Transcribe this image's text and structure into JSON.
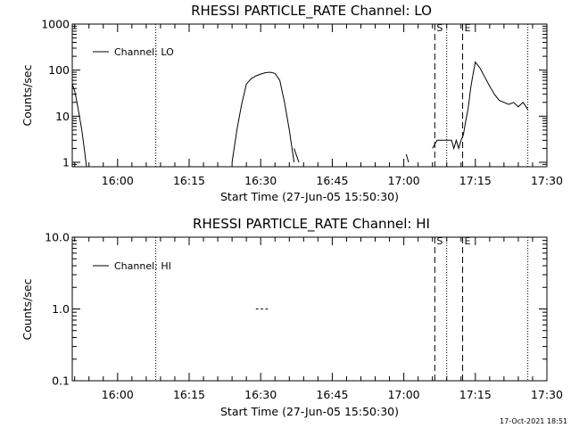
{
  "chart_data": [
    {
      "type": "line",
      "title": "RHESSI PARTICLE_RATE Channel: LO",
      "ylabel": "Counts/sec",
      "xlabel": "Start Time (27-Jun-05 15:50:30)",
      "x_ticks": [
        "16:00",
        "16:15",
        "16:30",
        "16:45",
        "17:00",
        "17:15",
        "17:30"
      ],
      "y_scale": "log",
      "y_ticks": [
        "1",
        "10",
        "100",
        "1000"
      ],
      "ylim": [
        0.8,
        1000
      ],
      "xlim": [
        "15:50:30",
        "17:30:00"
      ],
      "legend": {
        "label": "Channel: LO",
        "position": "top-left"
      },
      "markers": [
        {
          "label": "",
          "time": "16:08:00",
          "style": "dotted"
        },
        {
          "label": "S",
          "time": "17:06:30",
          "style": "dashed"
        },
        {
          "label": "",
          "time": "17:09:00",
          "style": "dotted"
        },
        {
          "label": "E",
          "time": "17:12:20",
          "style": "dashed"
        },
        {
          "label": "",
          "time": "17:26:00",
          "style": "dotted"
        }
      ],
      "series": [
        {
          "segments": [
            [
              [
                "15:50:30",
                50
              ],
              [
                "15:51:00",
                35
              ],
              [
                "15:51:30",
                20
              ],
              [
                "15:52:00",
                10
              ],
              [
                "15:52:30",
                5
              ],
              [
                "15:53:00",
                2
              ],
              [
                "15:53:30",
                0.8
              ]
            ],
            [
              [
                "16:24:00",
                1
              ],
              [
                "16:25:00",
                5
              ],
              [
                "16:26:00",
                18
              ],
              [
                "16:27:00",
                50
              ],
              [
                "16:28:00",
                65
              ],
              [
                "16:29:00",
                75
              ],
              [
                "16:30:00",
                82
              ],
              [
                "16:31:00",
                88
              ],
              [
                "16:32:00",
                90
              ],
              [
                "16:33:00",
                85
              ],
              [
                "16:34:00",
                60
              ],
              [
                "16:35:00",
                20
              ],
              [
                "16:36:00",
                5
              ],
              [
                "16:37:00",
                1
              ]
            ],
            [
              [
                "16:37:00",
                2
              ],
              [
                "16:38:00",
                1
              ]
            ],
            [
              [
                "17:00:30",
                1.5
              ],
              [
                "17:01:00",
                1
              ]
            ],
            [
              [
                "17:06:00",
                2
              ],
              [
                "17:07:00",
                3
              ],
              [
                "17:08:00",
                3
              ],
              [
                "17:09:00",
                3
              ],
              [
                "17:10:00",
                3
              ],
              [
                "17:10:30",
                2
              ],
              [
                "17:11:00",
                3
              ],
              [
                "17:11:30",
                2
              ],
              [
                "17:12:00",
                3
              ],
              [
                "17:12:30",
                4
              ],
              [
                "17:13:00",
                8
              ],
              [
                "17:13:30",
                15
              ],
              [
                "17:14:00",
                40
              ],
              [
                "17:14:30",
                80
              ],
              [
                "17:15:00",
                150
              ],
              [
                "17:16:00",
                110
              ],
              [
                "17:17:00",
                70
              ],
              [
                "17:18:00",
                45
              ],
              [
                "17:19:00",
                30
              ],
              [
                "17:20:00",
                22
              ],
              [
                "17:21:00",
                20
              ],
              [
                "17:22:00",
                18
              ],
              [
                "17:23:00",
                20
              ],
              [
                "17:24:00",
                16
              ],
              [
                "17:25:00",
                20
              ],
              [
                "17:26:00",
                14
              ]
            ]
          ]
        }
      ]
    },
    {
      "type": "line",
      "title": "RHESSI PARTICLE_RATE Channel: HI",
      "ylabel": "Counts/sec",
      "xlabel": "Start Time (27-Jun-05 15:50:30)",
      "x_ticks": [
        "16:00",
        "16:15",
        "16:30",
        "16:45",
        "17:00",
        "17:15",
        "17:30"
      ],
      "y_scale": "log",
      "y_ticks": [
        "0.1",
        "1.0",
        "10.0"
      ],
      "ylim": [
        0.1,
        10
      ],
      "xlim": [
        "15:50:30",
        "17:30:00"
      ],
      "legend": {
        "label": "Channel: HI",
        "position": "top-left"
      },
      "markers": [
        {
          "label": "",
          "time": "16:08:00",
          "style": "dotted"
        },
        {
          "label": "S",
          "time": "17:06:30",
          "style": "dashed"
        },
        {
          "label": "",
          "time": "17:09:00",
          "style": "dotted"
        },
        {
          "label": "E",
          "time": "17:12:20",
          "style": "dashed"
        },
        {
          "label": "",
          "time": "17:26:00",
          "style": "dotted"
        }
      ],
      "series": [
        {
          "segments": [
            [
              [
                "16:29:00",
                1
              ],
              [
                "16:29:30",
                1
              ]
            ],
            [
              [
                "16:30:00",
                1
              ],
              [
                "16:30:30",
                1
              ]
            ],
            [
              [
                "16:31:00",
                1
              ],
              [
                "16:31:30",
                1
              ]
            ]
          ]
        }
      ]
    }
  ],
  "footer_timestamp": "17-Oct-2021 18:51",
  "colors": {
    "background": "#ffffff",
    "foreground": "#000000"
  }
}
